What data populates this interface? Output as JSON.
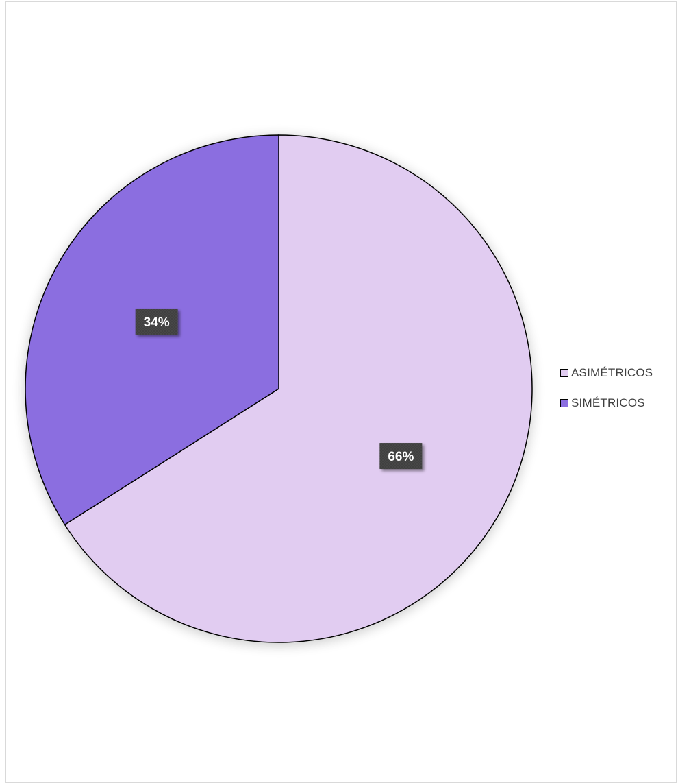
{
  "chart_data": {
    "type": "pie",
    "slices": [
      {
        "label": "ASIMÉTRICOS",
        "value": 66,
        "display": "66%",
        "color": "#e1ccf1"
      },
      {
        "label": "SIMÉTRICOS",
        "value": 34,
        "display": "34%",
        "color": "#8b6ee0"
      }
    ],
    "title": "",
    "legend_position": "right",
    "data_label_background": "#404040",
    "slice_border_color": "#000000"
  }
}
